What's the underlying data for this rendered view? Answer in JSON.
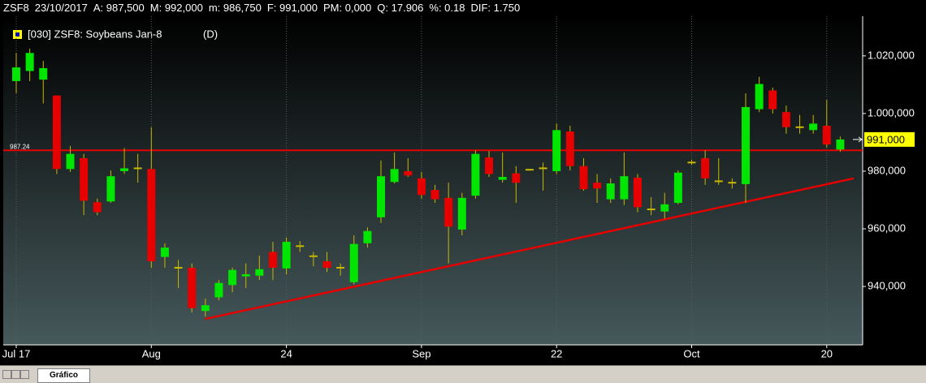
{
  "header": {
    "items": [
      "ZSF8",
      "23/10/2017",
      "A: 987,500",
      "M: 992,000",
      "m: 986,750",
      "F: 991,000",
      "PM: 0,000",
      "Q: 17.906",
      "%: 0.18",
      "DIF: 1.750"
    ]
  },
  "chart_data": {
    "type": "candlestick",
    "legend_label": "[030] ZSF8: Soybeans Jan-8",
    "period": "(D)",
    "categories": [
      "Jul 17",
      null,
      null,
      null,
      null,
      null,
      null,
      null,
      null,
      null,
      "Aug",
      null,
      null,
      null,
      null,
      null,
      null,
      null,
      null,
      null,
      "24",
      null,
      null,
      null,
      null,
      null,
      null,
      null,
      null,
      null,
      "Sep",
      null,
      null,
      null,
      null,
      null,
      null,
      null,
      null,
      null,
      "22",
      null,
      null,
      null,
      null,
      null,
      null,
      null,
      null,
      null,
      "Oct",
      null,
      null,
      null,
      null,
      null,
      null,
      null,
      null,
      null,
      "20",
      null
    ],
    "open": [
      1011250,
      1014750,
      1011750,
      1006250,
      980750,
      984500,
      969250,
      969500,
      980000,
      981000,
      980750,
      950250,
      946500,
      946500,
      931500,
      936250,
      940500,
      943500,
      943750,
      952000,
      946250,
      954000,
      950500,
      948750,
      946500,
      941500,
      955000,
      964000,
      976250,
      980000,
      977500,
      973500,
      970750,
      959750,
      971500,
      984750,
      977000,
      979250,
      980500,
      981000,
      980000,
      993750,
      981750,
      976000,
      970250,
      970250,
      977750,
      966750,
      966000,
      969000,
      983000,
      984500,
      976500,
      976000,
      975500,
      1001500,
      1008000,
      1000500,
      995250,
      994250,
      995750,
      987500
    ],
    "high": [
      1021000,
      1022500,
      1018250,
      1006250,
      988750,
      986000,
      970500,
      980250,
      988000,
      986000,
      995250,
      955000,
      949250,
      948000,
      935750,
      942250,
      946500,
      948000,
      950750,
      955500,
      957000,
      955750,
      952000,
      952000,
      948000,
      957750,
      960500,
      983750,
      986500,
      984500,
      979750,
      975250,
      976000,
      972500,
      987250,
      987000,
      986500,
      981750,
      980750,
      983000,
      996500,
      995750,
      984500,
      979000,
      977500,
      986500,
      979000,
      971000,
      972500,
      980250,
      984000,
      987250,
      984500,
      977500,
      1007000,
      1012750,
      1009000,
      1002750,
      999500,
      999500,
      1004750,
      992000
    ],
    "low": [
      1007000,
      1011250,
      1003500,
      979000,
      979750,
      964750,
      964750,
      969000,
      979000,
      976000,
      946500,
      946500,
      939500,
      931000,
      929500,
      935250,
      938000,
      939500,
      942250,
      942250,
      944250,
      952000,
      947000,
      945000,
      943750,
      940750,
      953500,
      962000,
      975750,
      978000,
      970500,
      969000,
      948000,
      957750,
      970500,
      978000,
      976000,
      969000,
      980250,
      973250,
      979000,
      980250,
      973250,
      969000,
      969000,
      968250,
      965750,
      964750,
      963500,
      968500,
      982250,
      975250,
      975250,
      974000,
      969000,
      1000500,
      1000000,
      993000,
      993000,
      993000,
      988250,
      986750
    ],
    "close": [
      1016000,
      1021000,
      1015750,
      980750,
      986000,
      969750,
      965750,
      978250,
      981000,
      981000,
      948750,
      953500,
      946500,
      932500,
      933500,
      941250,
      945750,
      944250,
      946000,
      946500,
      955500,
      954000,
      950500,
      946500,
      946500,
      954750,
      959250,
      978250,
      980750,
      978500,
      971750,
      970250,
      960750,
      970750,
      986000,
      979000,
      978000,
      976000,
      980500,
      981000,
      994250,
      981750,
      973750,
      974000,
      975750,
      978250,
      967500,
      966750,
      968500,
      979500,
      983000,
      977500,
      976500,
      976000,
      1002250,
      1010250,
      1001500,
      995250,
      995250,
      996500,
      989250,
      991000
    ],
    "up_color": "#00e600",
    "down_color": "#e60000",
    "wick_color": "#c8b800",
    "ylim": [
      919750,
      1033750
    ],
    "yticks": [
      {
        "value": 940000,
        "label": "940,000"
      },
      {
        "value": 960000,
        "label": "960,000"
      },
      {
        "value": 980000,
        "label": "980,000"
      },
      {
        "value": 1000000,
        "label": "1.000,000"
      },
      {
        "value": 1020000,
        "label": "1.020,000"
      }
    ],
    "grid": "x",
    "hline": {
      "value": 987240,
      "label": "987.24",
      "color": "#e60000"
    },
    "trendline": {
      "x": [
        14,
        62
      ],
      "values": [
        928750,
        977500
      ],
      "color": "#e60000"
    },
    "last_price": {
      "value": 991000,
      "label": "991,000",
      "color": "#ffff00"
    }
  },
  "footer": {
    "tab": "Gráfico"
  }
}
